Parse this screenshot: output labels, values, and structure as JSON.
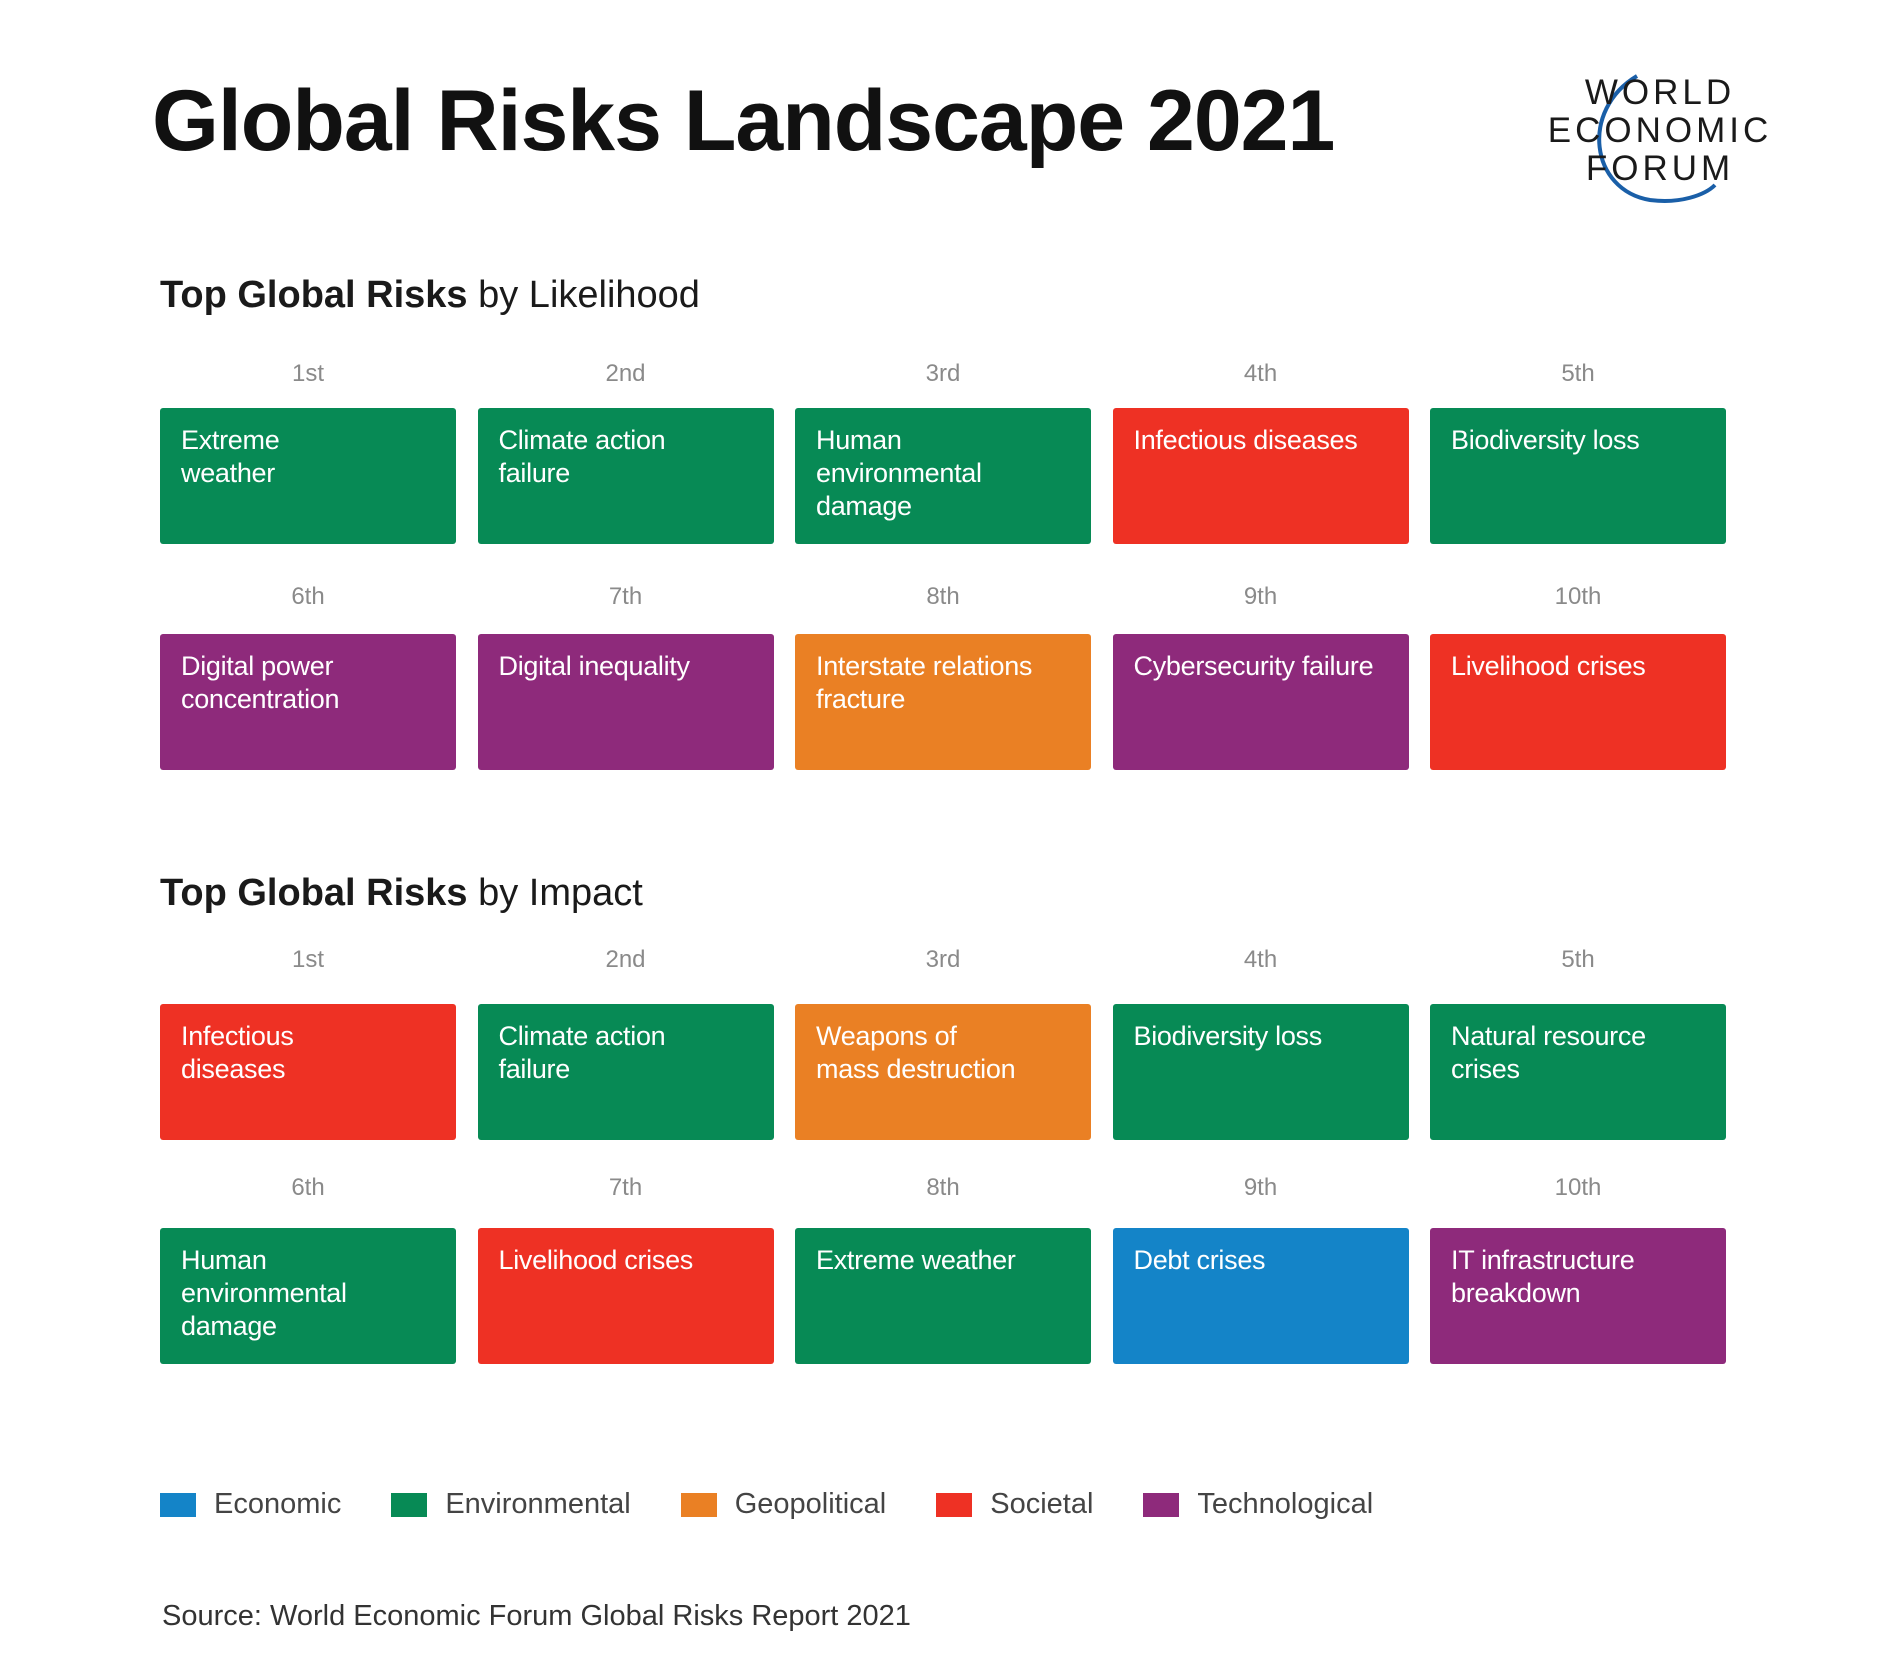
{
  "title": "Global Risks Landscape 2021",
  "logo": {
    "lines": [
      "WORLD",
      "ECONOMIC",
      "FORUM"
    ]
  },
  "colors": {
    "Economic": "#1484c8",
    "Environmental": "#078a55",
    "Geopolitical": "#ea8024",
    "Societal": "#ee3124",
    "Technological": "#8e2a7b"
  },
  "likelihood": {
    "title_bold": "Top Global Risks",
    "title_rest": " by Likelihood",
    "items": [
      {
        "rank": "1st",
        "label": "Extreme\nweather",
        "category": "Environmental"
      },
      {
        "rank": "2nd",
        "label": "Climate action\nfailure",
        "category": "Environmental"
      },
      {
        "rank": "3rd",
        "label": "Human\nenvironmental\ndamage",
        "category": "Environmental"
      },
      {
        "rank": "4th",
        "label": "Infectious diseases",
        "category": "Societal"
      },
      {
        "rank": "5th",
        "label": "Biodiversity loss",
        "category": "Environmental"
      },
      {
        "rank": "6th",
        "label": "Digital power\nconcentration",
        "category": "Technological"
      },
      {
        "rank": "7th",
        "label": "Digital inequality",
        "category": "Technological"
      },
      {
        "rank": "8th",
        "label": "Interstate relations\nfracture",
        "category": "Geopolitical"
      },
      {
        "rank": "9th",
        "label": "Cybersecurity failure",
        "category": "Technological"
      },
      {
        "rank": "10th",
        "label": "Livelihood crises",
        "category": "Societal"
      }
    ]
  },
  "impact": {
    "title_bold": "Top Global Risks",
    "title_rest": " by Impact",
    "items": [
      {
        "rank": "1st",
        "label": "Infectious\ndiseases",
        "category": "Societal"
      },
      {
        "rank": "2nd",
        "label": "Climate action\nfailure",
        "category": "Environmental"
      },
      {
        "rank": "3rd",
        "label": "Weapons of\nmass destruction",
        "category": "Geopolitical"
      },
      {
        "rank": "4th",
        "label": "Biodiversity loss",
        "category": "Environmental"
      },
      {
        "rank": "5th",
        "label": "Natural resource\ncrises",
        "category": "Environmental"
      },
      {
        "rank": "6th",
        "label": "Human\nenvironmental\ndamage",
        "category": "Environmental"
      },
      {
        "rank": "7th",
        "label": "Livelihood crises",
        "category": "Societal"
      },
      {
        "rank": "8th",
        "label": "Extreme weather",
        "category": "Environmental"
      },
      {
        "rank": "9th",
        "label": "Debt crises",
        "category": "Economic"
      },
      {
        "rank": "10th",
        "label": "IT infrastructure\nbreakdown",
        "category": "Technological"
      }
    ]
  },
  "legend": [
    "Economic",
    "Environmental",
    "Geopolitical",
    "Societal",
    "Technological"
  ],
  "source": "Source: World Economic Forum Global Risks Report 2021"
}
